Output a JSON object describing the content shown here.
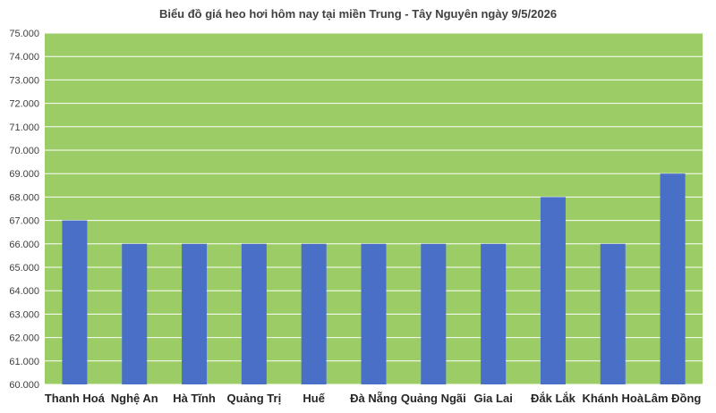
{
  "chart_data": {
    "type": "bar",
    "title": "Biểu đồ giá heo hơi hôm nay tại miền Trung - Tây Nguyên ngày 9/5/2026",
    "xlabel": "",
    "ylabel": "",
    "categories": [
      "Thanh Hoá",
      "Nghệ An",
      "Hà Tĩnh",
      "Quảng Trị",
      "Huế",
      "Đà Nẵng",
      "Quảng Ngãi",
      "Gia Lai",
      "Đắk Lắk",
      "Khánh Hoà",
      "Lâm Đồng"
    ],
    "values": [
      67000,
      66000,
      66000,
      66000,
      66000,
      66000,
      66000,
      66000,
      68000,
      66000,
      69000
    ],
    "ylim": [
      60000,
      75000
    ],
    "ytick_labels": [
      "60.000",
      "61.000",
      "62.000",
      "63.000",
      "64.000",
      "65.000",
      "66.000",
      "67.000",
      "68.000",
      "69.000",
      "70.000",
      "71.000",
      "72.000",
      "73.000",
      "74.000",
      "75.000"
    ],
    "grid": true,
    "legend": "none",
    "colors": {
      "plot_background": "#9ccc65",
      "bar": "#4a6fc7",
      "grid": "#ffffff"
    }
  }
}
